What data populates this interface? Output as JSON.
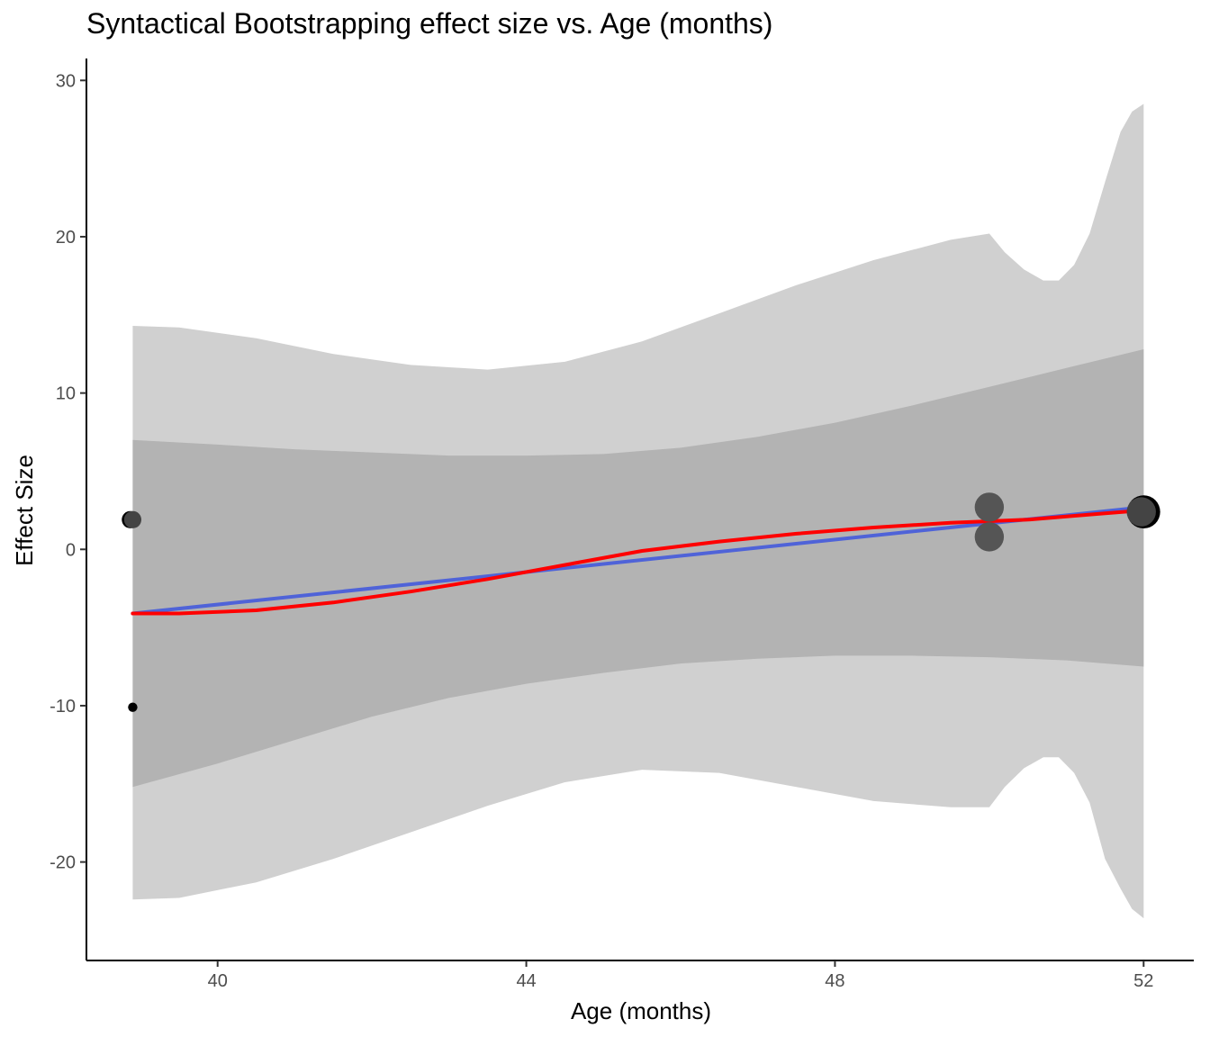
{
  "chart_data": {
    "type": "scatter",
    "title": "Syntactical Bootstrapping effect size vs. Age (months)",
    "xlabel": "Age (months)",
    "ylabel": "Effect Size",
    "xlim": [
      38.3,
      52.65
    ],
    "ylim": [
      -26.3,
      31.4
    ],
    "x_ticks": [
      40,
      44,
      48,
      52
    ],
    "y_ticks": [
      -20,
      -10,
      0,
      10,
      20,
      30
    ],
    "grid": false,
    "legend": "none",
    "points": [
      {
        "x": 38.87,
        "y": 1.9,
        "size": 3,
        "color": "#000000"
      },
      {
        "x": 38.9,
        "y": 1.9,
        "size": 3,
        "color": "#444444"
      },
      {
        "x": 38.9,
        "y": -10.1,
        "size": 1,
        "color": "#000000"
      },
      {
        "x": 50.0,
        "y": 2.7,
        "size": 6,
        "color": "#555555"
      },
      {
        "x": 50.0,
        "y": 0.8,
        "size": 6,
        "color": "#555555"
      },
      {
        "x": 52.0,
        "y": 2.4,
        "size": 7,
        "color": "#000000"
      },
      {
        "x": 51.97,
        "y": 2.4,
        "size": 6,
        "color": "#444444"
      }
    ],
    "bands": [
      {
        "name": "outer-band",
        "color": "#d0d0d0",
        "x": [
          38.9,
          39.5,
          40.5,
          41.5,
          42.5,
          43.5,
          44.5,
          45.5,
          46.5,
          47.5,
          48.5,
          49.5,
          50.0,
          50.2,
          50.45,
          50.7,
          50.9,
          51.1,
          51.3,
          51.5,
          51.7,
          51.85,
          52.0
        ],
        "upper": [
          14.3,
          14.2,
          13.5,
          12.5,
          11.8,
          11.5,
          12.0,
          13.3,
          15.1,
          16.9,
          18.5,
          19.8,
          20.2,
          19.0,
          17.9,
          17.2,
          17.2,
          18.2,
          20.2,
          23.5,
          26.7,
          28.0,
          28.5
        ],
        "lower": [
          -22.4,
          -22.3,
          -21.3,
          -19.8,
          -18.1,
          -16.4,
          -14.9,
          -14.1,
          -14.3,
          -15.2,
          -16.1,
          -16.5,
          -16.5,
          -15.2,
          -14.0,
          -13.3,
          -13.3,
          -14.3,
          -16.2,
          -19.8,
          -21.7,
          -23.0,
          -23.6
        ]
      },
      {
        "name": "inner-band",
        "color": "#b3b3b3",
        "x": [
          38.9,
          40.0,
          41.0,
          42.0,
          43.0,
          44.0,
          45.0,
          46.0,
          47.0,
          48.0,
          49.0,
          50.0,
          51.0,
          52.0
        ],
        "upper": [
          7.0,
          6.7,
          6.4,
          6.2,
          6.0,
          6.0,
          6.1,
          6.5,
          7.2,
          8.1,
          9.2,
          10.4,
          11.6,
          12.8
        ],
        "lower": [
          -15.2,
          -13.7,
          -12.2,
          -10.7,
          -9.5,
          -8.6,
          -7.9,
          -7.3,
          -7.0,
          -6.8,
          -6.8,
          -6.9,
          -7.1,
          -7.5
        ]
      }
    ],
    "lines": [
      {
        "name": "linear-fit",
        "color": "#4f63d8",
        "x": [
          38.9,
          52.0
        ],
        "y": [
          -4.1,
          2.7
        ]
      },
      {
        "name": "curve-fit",
        "color": "#ff0000",
        "x": [
          38.9,
          39.5,
          40.5,
          41.5,
          42.5,
          43.5,
          44.5,
          45.5,
          46.5,
          47.5,
          48.5,
          49.5,
          50.0,
          50.5,
          51.0,
          51.5,
          52.0
        ],
        "y": [
          -4.1,
          -4.1,
          -3.9,
          -3.4,
          -2.7,
          -1.9,
          -1.0,
          -0.1,
          0.5,
          1.0,
          1.4,
          1.7,
          1.8,
          1.9,
          2.1,
          2.3,
          2.5
        ]
      }
    ]
  }
}
